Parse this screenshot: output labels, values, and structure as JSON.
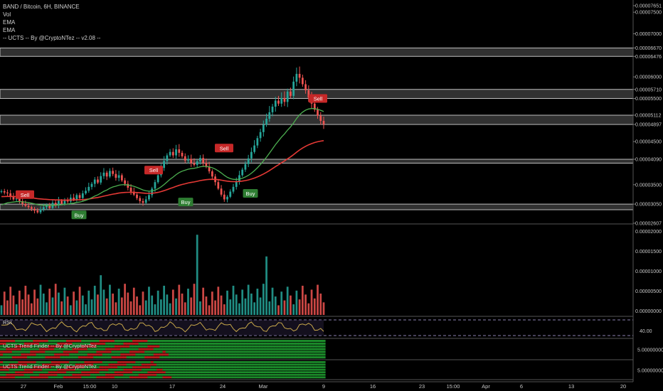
{
  "legend": {
    "title": "BAND / Bitcoin, 6H, BINANCE",
    "vol": "Vol",
    "ema1": "EMA",
    "ema2": "EMA",
    "ucts": "-- UCTS -- By @CryptoNTez -- v2.08 --"
  },
  "panels": {
    "rsi_label": "RSI",
    "trend1_label": "UCTS Trend Finder -- By @CryptoNTez",
    "trend2_label": "UCTS Trend Finder -- By @CryptoNTez"
  },
  "colors": {
    "up": "#26a69a",
    "down": "#ef5350",
    "ema_fast": "#4caf50",
    "ema_slow": "#e53935",
    "zone": "#9e9e9e",
    "rsi": "#c8a84b",
    "sell_badge": "#c62828",
    "buy_badge": "#2e7d32"
  },
  "chart_data": {
    "type": "candlestick",
    "symbol": "BAND / Bitcoin",
    "timeframe": "6H",
    "exchange": "BINANCE",
    "price_ticks": [
      "0.00007651",
      "0.00007500",
      "0.00007000",
      "0.00006670",
      "0.00006476",
      "0.00006000",
      "0.00005710",
      "0.00005500",
      "0.00005112",
      "0.00004897",
      "0.00004500",
      "0.00004090",
      "0.00003500",
      "0.00003050",
      "0.00002607"
    ],
    "volume_ticks": [
      "0.00000000",
      "0.00000500",
      "0.00001000",
      "0.00001500",
      "0.00002000"
    ],
    "rsi_ticks": [
      "40.00"
    ],
    "trend_ticks": [
      "5.00000000",
      "5.00000000"
    ],
    "x_ticks": [
      "27",
      "Feb",
      "15:00",
      "10",
      "17",
      "24",
      "Mar",
      "9",
      "16",
      "23",
      "15:00",
      "Apr",
      "6",
      "13",
      "20"
    ],
    "price_range": [
      2.607e-05,
      7.651e-05
    ],
    "zones": [
      {
        "low": 6.476e-05,
        "high": 6.67e-05
      },
      {
        "low": 5.5e-05,
        "high": 5.71e-05
      },
      {
        "low": 4.897e-05,
        "high": 5.112e-05
      },
      {
        "low": 4e-05,
        "high": 4.09e-05
      },
      {
        "low": 2.92e-05,
        "high": 3.05e-05
      }
    ],
    "signals": [
      {
        "label": "Sell",
        "type": "sell",
        "date": "Jan 27",
        "price": 3.27e-05
      },
      {
        "label": "Buy",
        "type": "buy",
        "date": "Feb 5",
        "price": 2.8e-05
      },
      {
        "label": "Sell",
        "type": "sell",
        "date": "Feb 11",
        "price": 3.84e-05
      },
      {
        "label": "Buy",
        "type": "buy",
        "date": "Feb 16",
        "price": 3.1e-05
      },
      {
        "label": "Sell",
        "type": "sell",
        "date": "Feb 24",
        "price": 4.35e-05
      },
      {
        "label": "Buy",
        "type": "buy",
        "date": "Mar 2",
        "price": 3.3e-05
      },
      {
        "label": "Sell",
        "type": "sell",
        "date": "Mar 8",
        "price": 5.5e-05
      }
    ],
    "close": [
      3.35e-05,
      3.32e-05,
      3.3e-05,
      3.22e-05,
      3.16e-05,
      3.19e-05,
      3.12e-05,
      3.06e-05,
      3.01e-05,
      2.98e-05,
      2.94e-05,
      2.9e-05,
      2.86e-05,
      2.93e-05,
      2.98e-05,
      3.03e-05,
      2.96e-05,
      3.08e-05,
      3.02e-05,
      3.13e-05,
      3.06e-05,
      3.14e-05,
      3.11e-05,
      3.2e-05,
      3.15e-05,
      3.26e-05,
      3.19e-05,
      3.3e-05,
      3.36e-05,
      3.45e-05,
      3.52e-05,
      3.62e-05,
      3.55e-05,
      3.7e-05,
      3.78e-05,
      3.69e-05,
      3.82e-05,
      3.75e-05,
      3.66e-05,
      3.72e-05,
      3.6e-05,
      3.52e-05,
      3.43e-05,
      3.34e-05,
      3.27e-05,
      3.19e-05,
      3.12e-05,
      3.08e-05,
      3.16e-05,
      3.26e-05,
      3.41e-05,
      3.56e-05,
      3.72e-05,
      3.89e-05,
      4.05e-05,
      4.18e-05,
      4.26e-05,
      4.18e-05,
      4.32e-05,
      4.24e-05,
      4.16e-05,
      4.06e-05,
      4.1e-05,
      4e-05,
      3.96e-05,
      4.04e-05,
      4.12e-05,
      4.01e-05,
      3.92e-05,
      3.81e-05,
      3.69e-05,
      3.56e-05,
      3.41e-05,
      3.27e-05,
      3.16e-05,
      3.22e-05,
      3.34e-05,
      3.45e-05,
      3.58e-05,
      3.72e-05,
      3.85e-05,
      3.98e-05,
      4.11e-05,
      4.26e-05,
      4.41e-05,
      4.58e-05,
      4.72e-05,
      4.89e-05,
      5.03e-05,
      5.18e-05,
      5.31e-05,
      5.45e-05,
      5.38e-05,
      5.51e-05,
      5.42e-05,
      5.66e-05,
      5.56e-05,
      5.89e-05,
      6.07e-05,
      5.98e-05,
      5.83e-05,
      5.69e-05,
      5.52e-05,
      5.38e-05,
      5.24e-05,
      5.1e-05,
      4.98e-05,
      4.9e-05
    ],
    "ema_fast_start": 3e-05,
    "ema_slow_start": 3.22e-05,
    "volume_max": 2.2e-05,
    "rsi_last": 42
  }
}
